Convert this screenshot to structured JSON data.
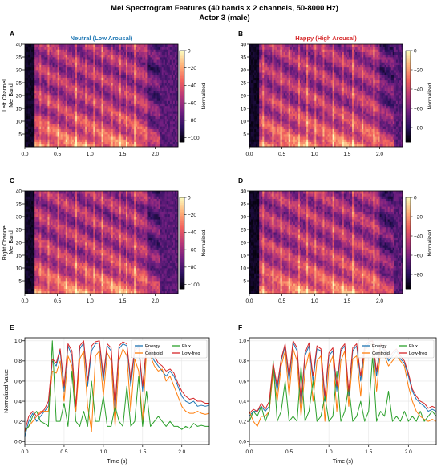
{
  "figure": {
    "title_line1": "Mel Spectrogram Features (40 bands × 2 channels, 50-8000 Hz)",
    "title_line2": "Actor 3 (male)"
  },
  "colors": {
    "neutral_title": "#1f77b4",
    "happy_title": "#d62728",
    "energy": "#1f77b4",
    "centroid": "#ff7f0e",
    "flux": "#2ca02c",
    "lowfreq": "#d62728",
    "colormap": [
      "#000004",
      "#2c115f",
      "#721f81",
      "#b73779",
      "#f1605d",
      "#feb078",
      "#fcfdbf"
    ]
  },
  "chart_data": [
    {
      "panel": "A",
      "type": "heatmap",
      "title": "Neutral (Low Arousal)",
      "ylabel": "Left Channel\nMel Band",
      "xlabel": "",
      "xlim": [
        0,
        2.35
      ],
      "ylim": [
        0,
        40
      ],
      "xticks": [
        0.0,
        0.5,
        1.0,
        1.5,
        2.0
      ],
      "yticks": [
        5,
        10,
        15,
        20,
        25,
        30,
        35,
        40
      ],
      "colorbar": {
        "label": "Normalized",
        "ticks": [
          0,
          -20,
          -40,
          -60,
          -80,
          -100
        ],
        "range": [
          -105,
          0
        ]
      },
      "onsets": [
        0.22,
        0.35,
        0.5,
        0.62,
        0.78,
        0.92,
        1.05,
        1.18,
        1.32,
        1.45,
        1.55,
        1.68,
        1.85
      ],
      "active_span": [
        0.16,
        2.0
      ]
    },
    {
      "panel": "B",
      "type": "heatmap",
      "title": "Happy (High Arousal)",
      "ylabel": "",
      "xlabel": "",
      "xlim": [
        0,
        2.35
      ],
      "ylim": [
        0,
        40
      ],
      "xticks": [
        0.0,
        0.5,
        1.0,
        1.5,
        2.0
      ],
      "yticks": [
        5,
        10,
        15,
        20,
        25,
        30,
        35,
        40
      ],
      "colorbar": {
        "label": "Normalized",
        "ticks": [
          0,
          -20,
          -40,
          -60,
          -80
        ],
        "range": [
          -95,
          0
        ]
      },
      "onsets": [
        0.2,
        0.35,
        0.48,
        0.6,
        0.75,
        0.88,
        1.0,
        1.12,
        1.28,
        1.42,
        1.58,
        1.72,
        1.9
      ],
      "active_span": [
        0.15,
        2.15
      ]
    },
    {
      "panel": "C",
      "type": "heatmap",
      "title": "",
      "ylabel": "Right Channel\nMel Band",
      "xlabel": "",
      "xlim": [
        0,
        2.35
      ],
      "ylim": [
        0,
        40
      ],
      "xticks": [
        0.0,
        0.5,
        1.0,
        1.5,
        2.0
      ],
      "yticks": [
        5,
        10,
        15,
        20,
        25,
        30,
        35,
        40
      ],
      "colorbar": {
        "label": "Normalized",
        "ticks": [
          0,
          -20,
          -40,
          -60,
          -80,
          -100
        ],
        "range": [
          -105,
          0
        ]
      },
      "onsets": [
        0.22,
        0.35,
        0.5,
        0.62,
        0.78,
        0.92,
        1.05,
        1.18,
        1.32,
        1.45,
        1.55,
        1.68,
        1.85
      ],
      "active_span": [
        0.16,
        2.0
      ]
    },
    {
      "panel": "D",
      "type": "heatmap",
      "title": "",
      "ylabel": "",
      "xlabel": "",
      "xlim": [
        0,
        2.35
      ],
      "ylim": [
        0,
        40
      ],
      "xticks": [
        0.0,
        0.5,
        1.0,
        1.5,
        2.0
      ],
      "yticks": [
        5,
        10,
        15,
        20,
        25,
        30,
        35,
        40
      ],
      "colorbar": {
        "label": "Normalized",
        "ticks": [
          0,
          -20,
          -40,
          -60,
          -80
        ],
        "range": [
          -95,
          0
        ]
      },
      "onsets": [
        0.2,
        0.35,
        0.48,
        0.6,
        0.75,
        0.88,
        1.0,
        1.12,
        1.28,
        1.42,
        1.58,
        1.72,
        1.9
      ],
      "active_span": [
        0.15,
        2.15
      ]
    },
    {
      "panel": "E",
      "type": "line",
      "xlabel": "Time (s)",
      "ylabel": "Normalized Value",
      "xlim": [
        0,
        2.35
      ],
      "ylim": [
        -0.03,
        1.03
      ],
      "xticks": [
        0.0,
        0.5,
        1.0,
        1.5,
        2.0
      ],
      "yticks": [
        0.0,
        0.2,
        0.4,
        0.6,
        0.8,
        1.0
      ],
      "grid": true,
      "legend_position": "top-right",
      "x": [
        0.0,
        0.05,
        0.1,
        0.15,
        0.2,
        0.25,
        0.3,
        0.35,
        0.4,
        0.45,
        0.5,
        0.55,
        0.6,
        0.65,
        0.7,
        0.75,
        0.8,
        0.85,
        0.9,
        0.95,
        1.0,
        1.05,
        1.1,
        1.15,
        1.2,
        1.25,
        1.3,
        1.35,
        1.4,
        1.45,
        1.5,
        1.55,
        1.6,
        1.65,
        1.7,
        1.75,
        1.8,
        1.85,
        1.9,
        1.95,
        2.0,
        2.05,
        2.1,
        2.15,
        2.2,
        2.25,
        2.3,
        2.35
      ],
      "series": [
        {
          "name": "Energy",
          "values": [
            0.05,
            0.2,
            0.28,
            0.2,
            0.25,
            0.3,
            0.35,
            0.8,
            0.75,
            0.9,
            0.5,
            0.95,
            0.85,
            0.3,
            0.92,
            0.98,
            0.55,
            0.9,
            0.97,
            0.98,
            0.6,
            0.95,
            0.9,
            0.3,
            0.92,
            0.97,
            0.95,
            0.55,
            0.9,
            0.94,
            0.5,
            0.92,
            0.88,
            0.8,
            0.75,
            0.7,
            0.65,
            0.7,
            0.65,
            0.55,
            0.45,
            0.4,
            0.38,
            0.4,
            0.35,
            0.36,
            0.35,
            0.36
          ]
        },
        {
          "name": "Centroid",
          "values": [
            0.1,
            0.15,
            0.2,
            0.25,
            0.3,
            0.3,
            0.3,
            0.7,
            0.68,
            0.8,
            0.4,
            0.85,
            0.75,
            0.3,
            0.82,
            0.9,
            0.35,
            0.1,
            0.85,
            0.9,
            0.45,
            0.88,
            0.8,
            0.15,
            0.8,
            0.92,
            0.85,
            0.3,
            0.82,
            0.7,
            0.2,
            0.9,
            0.85,
            0.75,
            0.7,
            0.72,
            0.6,
            0.65,
            0.55,
            0.45,
            0.35,
            0.3,
            0.28,
            0.28,
            0.3,
            0.28,
            0.27,
            0.28
          ]
        },
        {
          "name": "Flux",
          "values": [
            0.1,
            0.15,
            0.25,
            0.3,
            0.2,
            0.18,
            0.15,
            1.0,
            0.2,
            0.2,
            0.38,
            0.15,
            0.7,
            0.2,
            0.15,
            0.3,
            0.15,
            0.6,
            0.2,
            0.2,
            0.45,
            0.15,
            0.15,
            0.35,
            0.2,
            0.15,
            0.55,
            0.15,
            0.2,
            0.65,
            0.15,
            0.5,
            0.15,
            0.2,
            0.25,
            0.2,
            0.15,
            0.2,
            0.15,
            0.15,
            0.12,
            0.15,
            0.13,
            0.18,
            0.15,
            0.16,
            0.15,
            0.15
          ]
        },
        {
          "name": "Low-freq",
          "values": [
            0.1,
            0.25,
            0.3,
            0.25,
            0.28,
            0.32,
            0.4,
            0.82,
            0.78,
            0.92,
            0.55,
            0.97,
            0.9,
            0.35,
            0.95,
            1.0,
            0.6,
            0.95,
            0.99,
            1.0,
            0.65,
            0.97,
            0.93,
            0.35,
            0.95,
            0.99,
            0.97,
            0.6,
            0.93,
            0.96,
            0.55,
            0.95,
            0.9,
            0.85,
            0.78,
            0.75,
            0.7,
            0.72,
            0.68,
            0.58,
            0.5,
            0.45,
            0.42,
            0.43,
            0.4,
            0.4,
            0.38,
            0.38
          ]
        }
      ]
    },
    {
      "panel": "F",
      "type": "line",
      "xlabel": "Time (s)",
      "ylabel": "",
      "xlim": [
        0,
        2.35
      ],
      "ylim": [
        -0.03,
        1.03
      ],
      "xticks": [
        0.0,
        0.5,
        1.0,
        1.5,
        2.0
      ],
      "yticks": [
        0.0,
        0.2,
        0.4,
        0.6,
        0.8,
        1.0
      ],
      "grid": true,
      "legend_position": "top-right",
      "x": [
        0.0,
        0.05,
        0.1,
        0.15,
        0.2,
        0.25,
        0.3,
        0.35,
        0.4,
        0.45,
        0.5,
        0.55,
        0.6,
        0.65,
        0.7,
        0.75,
        0.8,
        0.85,
        0.9,
        0.95,
        1.0,
        1.05,
        1.1,
        1.15,
        1.2,
        1.25,
        1.3,
        1.35,
        1.4,
        1.45,
        1.5,
        1.55,
        1.6,
        1.65,
        1.7,
        1.75,
        1.8,
        1.85,
        1.9,
        1.95,
        2.0,
        2.05,
        2.1,
        2.15,
        2.2,
        2.25,
        2.3,
        2.35
      ],
      "series": [
        {
          "name": "Energy",
          "values": [
            0.25,
            0.3,
            0.3,
            0.35,
            0.3,
            0.35,
            0.75,
            0.5,
            0.8,
            0.95,
            0.6,
            0.98,
            0.9,
            0.35,
            0.85,
            0.95,
            0.6,
            0.92,
            0.9,
            0.4,
            0.85,
            0.9,
            0.5,
            0.9,
            0.95,
            0.45,
            0.9,
            0.95,
            0.6,
            0.92,
            0.97,
            0.98,
            0.65,
            0.95,
            0.9,
            0.8,
            0.85,
            0.9,
            0.82,
            0.78,
            0.65,
            0.5,
            0.42,
            0.38,
            0.35,
            0.3,
            0.32,
            0.3
          ]
        },
        {
          "name": "Centroid",
          "values": [
            0.3,
            0.2,
            0.15,
            0.25,
            0.25,
            0.3,
            0.7,
            0.4,
            0.75,
            0.9,
            0.45,
            0.92,
            0.8,
            0.25,
            0.7,
            0.88,
            0.4,
            0.8,
            0.85,
            0.2,
            0.75,
            0.85,
            0.3,
            0.8,
            0.9,
            0.35,
            0.82,
            0.85,
            0.45,
            0.9,
            0.95,
            0.97,
            0.5,
            0.9,
            0.85,
            0.75,
            0.8,
            0.85,
            0.8,
            0.75,
            0.55,
            0.4,
            0.3,
            0.25,
            0.22,
            0.2,
            0.22,
            0.2
          ]
        },
        {
          "name": "Flux",
          "values": [
            0.2,
            0.3,
            0.25,
            0.35,
            0.2,
            0.3,
            0.8,
            0.2,
            0.3,
            0.6,
            0.2,
            0.25,
            0.2,
            0.75,
            0.2,
            0.3,
            0.6,
            0.2,
            0.25,
            0.45,
            0.2,
            0.25,
            0.7,
            0.2,
            0.3,
            0.55,
            0.2,
            0.25,
            0.4,
            0.2,
            0.3,
            0.85,
            0.2,
            0.3,
            0.25,
            0.5,
            0.2,
            0.25,
            0.2,
            0.3,
            0.2,
            0.25,
            0.2,
            0.3,
            0.2,
            0.25,
            0.3,
            0.25
          ]
        },
        {
          "name": "Low-freq",
          "values": [
            0.28,
            0.32,
            0.3,
            0.38,
            0.32,
            0.4,
            0.78,
            0.55,
            0.82,
            0.97,
            0.65,
            1.0,
            0.93,
            0.4,
            0.88,
            0.98,
            0.65,
            0.95,
            0.92,
            0.45,
            0.88,
            0.93,
            0.55,
            0.92,
            0.97,
            0.5,
            0.93,
            0.97,
            0.65,
            0.95,
            0.99,
            1.0,
            0.7,
            0.97,
            0.92,
            0.83,
            0.88,
            0.92,
            0.85,
            0.8,
            0.68,
            0.52,
            0.45,
            0.4,
            0.38,
            0.33,
            0.35,
            0.33
          ]
        }
      ]
    }
  ]
}
